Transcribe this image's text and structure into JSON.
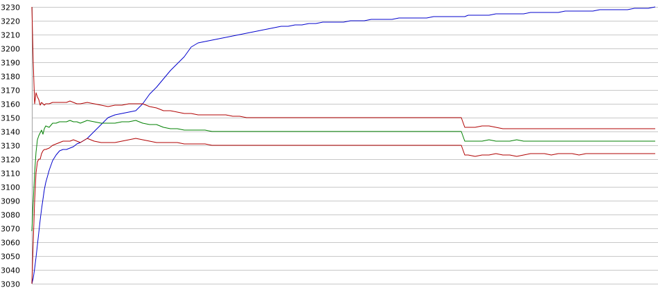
{
  "chart_data": {
    "type": "line",
    "title": "",
    "xlabel": "",
    "ylabel": "",
    "ylim": [
      3030,
      3230
    ],
    "y_ticks": [
      3030,
      3040,
      3050,
      3060,
      3070,
      3080,
      3090,
      3100,
      3110,
      3120,
      3130,
      3140,
      3150,
      3160,
      3170,
      3180,
      3190,
      3200,
      3210,
      3220,
      3230
    ],
    "grid": true,
    "legend": "none",
    "x": [
      0,
      2,
      4,
      6,
      8,
      10,
      12,
      14,
      16,
      18,
      20,
      25,
      30,
      35,
      40,
      45,
      50,
      55,
      60,
      65,
      70,
      80,
      90,
      100,
      110,
      120,
      130,
      140,
      150,
      160,
      170,
      180,
      190,
      200,
      210,
      220,
      230,
      240,
      250,
      260,
      270,
      280,
      290,
      300,
      310,
      320,
      330,
      340,
      350,
      360,
      370,
      380,
      390,
      400,
      410,
      420,
      430,
      440,
      450,
      460,
      470,
      480,
      490,
      500,
      510,
      520,
      530,
      540,
      550,
      560,
      570,
      580,
      590,
      600,
      610,
      620,
      625,
      630,
      640,
      650,
      660,
      670,
      680,
      690,
      700,
      710,
      720,
      730,
      740,
      750,
      760,
      770,
      780,
      790,
      800,
      810,
      820,
      830,
      840,
      850,
      860,
      870,
      880,
      890,
      900
    ],
    "series": [
      {
        "color": "#0000cc",
        "values": [
          3030,
          3034,
          3041,
          3049,
          3058,
          3067,
          3076,
          3084,
          3091,
          3098,
          3103,
          3112,
          3119,
          3123,
          3126,
          3127,
          3127,
          3128,
          3129,
          3131,
          3132,
          3135,
          3140,
          3145,
          3150,
          3152,
          3153,
          3154,
          3155,
          3160,
          3167,
          3172,
          3178,
          3184,
          3189,
          3194,
          3201,
          3204,
          3205,
          3206,
          3207,
          3208,
          3209,
          3210,
          3211,
          3212,
          3213,
          3214,
          3215,
          3216,
          3216,
          3217,
          3217,
          3218,
          3218,
          3219,
          3219,
          3219,
          3219,
          3220,
          3220,
          3220,
          3221,
          3221,
          3221,
          3221,
          3222,
          3222,
          3222,
          3222,
          3222,
          3223,
          3223,
          3223,
          3223,
          3223,
          3223,
          3224,
          3224,
          3224,
          3224,
          3225,
          3225,
          3225,
          3225,
          3225,
          3226,
          3226,
          3226,
          3226,
          3226,
          3227,
          3227,
          3227,
          3227,
          3227,
          3228,
          3228,
          3228,
          3228,
          3228,
          3229,
          3229,
          3229,
          3230
        ]
      },
      {
        "color": "#008000",
        "values": [
          3068,
          3090,
          3110,
          3125,
          3134,
          3137,
          3139,
          3141,
          3138,
          3142,
          3144,
          3143,
          3146,
          3146,
          3147,
          3147,
          3147,
          3148,
          3147,
          3147,
          3146,
          3148,
          3147,
          3146,
          3146,
          3146,
          3147,
          3147,
          3148,
          3146,
          3145,
          3145,
          3143,
          3142,
          3142,
          3141,
          3141,
          3141,
          3141,
          3140,
          3140,
          3140,
          3140,
          3140,
          3140,
          3140,
          3140,
          3140,
          3140,
          3140,
          3140,
          3140,
          3140,
          3140,
          3140,
          3140,
          3140,
          3140,
          3140,
          3140,
          3140,
          3140,
          3140,
          3140,
          3140,
          3140,
          3140,
          3140,
          3140,
          3140,
          3140,
          3140,
          3140,
          3140,
          3140,
          3140,
          3133,
          3133,
          3133,
          3133,
          3134,
          3133,
          3133,
          3133,
          3134,
          3133,
          3133,
          3133,
          3133,
          3133,
          3133,
          3133,
          3133,
          3133,
          3133,
          3133,
          3133,
          3133,
          3133,
          3133,
          3133,
          3133,
          3133,
          3133,
          3133
        ]
      },
      {
        "color": "#b00000",
        "values": [
          3230,
          3190,
          3160,
          3168,
          3165,
          3163,
          3159,
          3161,
          3160,
          3159,
          3160,
          3160,
          3161,
          3161,
          3161,
          3161,
          3161,
          3162,
          3161,
          3160,
          3160,
          3161,
          3160,
          3159,
          3158,
          3159,
          3159,
          3160,
          3160,
          3160,
          3158,
          3157,
          3155,
          3155,
          3154,
          3153,
          3153,
          3152,
          3152,
          3152,
          3152,
          3152,
          3151,
          3151,
          3150,
          3150,
          3150,
          3150,
          3150,
          3150,
          3150,
          3150,
          3150,
          3150,
          3150,
          3150,
          3150,
          3150,
          3150,
          3150,
          3150,
          3150,
          3150,
          3150,
          3150,
          3150,
          3150,
          3150,
          3150,
          3150,
          3150,
          3150,
          3150,
          3150,
          3150,
          3150,
          3143,
          3143,
          3143,
          3144,
          3144,
          3143,
          3142,
          3142,
          3142,
          3142,
          3142,
          3142,
          3142,
          3142,
          3142,
          3142,
          3142,
          3142,
          3142,
          3142,
          3142,
          3142,
          3142,
          3142,
          3142,
          3142,
          3142,
          3142,
          3142
        ]
      },
      {
        "color": "#b00000",
        "values": [
          3030,
          3060,
          3090,
          3110,
          3118,
          3120,
          3120,
          3124,
          3126,
          3127,
          3127,
          3128,
          3130,
          3131,
          3132,
          3133,
          3133,
          3133,
          3134,
          3133,
          3132,
          3135,
          3133,
          3132,
          3132,
          3132,
          3133,
          3134,
          3135,
          3134,
          3133,
          3132,
          3132,
          3132,
          3132,
          3131,
          3131,
          3131,
          3131,
          3130,
          3130,
          3130,
          3130,
          3130,
          3130,
          3130,
          3130,
          3130,
          3130,
          3130,
          3130,
          3130,
          3130,
          3130,
          3130,
          3130,
          3130,
          3130,
          3130,
          3130,
          3130,
          3130,
          3130,
          3130,
          3130,
          3130,
          3130,
          3130,
          3130,
          3130,
          3130,
          3130,
          3130,
          3130,
          3130,
          3130,
          3123,
          3123,
          3122,
          3123,
          3123,
          3124,
          3123,
          3123,
          3122,
          3123,
          3124,
          3124,
          3124,
          3123,
          3124,
          3124,
          3124,
          3123,
          3124,
          3124,
          3124,
          3124,
          3124,
          3124,
          3124,
          3124,
          3124,
          3124,
          3124
        ]
      }
    ]
  }
}
